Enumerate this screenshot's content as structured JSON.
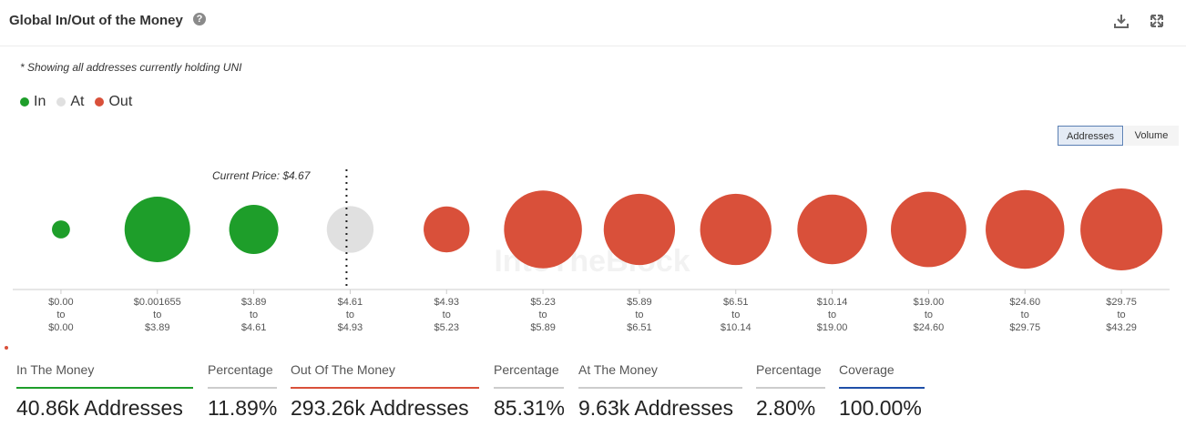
{
  "header": {
    "title": "Global In/Out of the Money",
    "help_glyph": "?"
  },
  "note": "* Showing all addresses currently holding UNI",
  "legend": [
    {
      "label": "In",
      "color": "#1e9e2a"
    },
    {
      "label": "At",
      "color": "#e0e0e0"
    },
    {
      "label": "Out",
      "color": "#d9503a"
    }
  ],
  "toggle": {
    "addresses": "Addresses",
    "volume": "Volume"
  },
  "watermark": "IntoTheBlock",
  "chart_data": {
    "type": "bubble",
    "title": "Global In/Out of the Money",
    "current_price_label": "Current Price: $4.67",
    "current_price": 4.67,
    "categories": [
      {
        "from": "$0.00",
        "to": "$0.00",
        "status": "in",
        "rel_size": 0.22
      },
      {
        "from": "$0.001655",
        "to": "$3.89",
        "status": "in",
        "rel_size": 0.8
      },
      {
        "from": "$3.89",
        "to": "$4.61",
        "status": "in",
        "rel_size": 0.6
      },
      {
        "from": "$4.61",
        "to": "$4.93",
        "status": "at",
        "rel_size": 0.57
      },
      {
        "from": "$4.93",
        "to": "$5.23",
        "status": "out",
        "rel_size": 0.56
      },
      {
        "from": "$5.23",
        "to": "$5.89",
        "status": "out",
        "rel_size": 0.95
      },
      {
        "from": "$5.89",
        "to": "$6.51",
        "status": "out",
        "rel_size": 0.87
      },
      {
        "from": "$6.51",
        "to": "$10.14",
        "status": "out",
        "rel_size": 0.87
      },
      {
        "from": "$10.14",
        "to": "$19.00",
        "status": "out",
        "rel_size": 0.85
      },
      {
        "from": "$19.00",
        "to": "$24.60",
        "status": "out",
        "rel_size": 0.92
      },
      {
        "from": "$24.60",
        "to": "$29.75",
        "status": "out",
        "rel_size": 0.96
      },
      {
        "from": "$29.75",
        "to": "$43.29",
        "status": "out",
        "rel_size": 1.0
      }
    ],
    "to_word": "to",
    "colors": {
      "in": "#1e9e2a",
      "at": "#e0e0e0",
      "out": "#d9503a"
    }
  },
  "stats": [
    {
      "label": "In The Money",
      "value": "40.86k Addresses",
      "color": "#1e9e2a"
    },
    {
      "label": "Percentage",
      "value": "11.89%",
      "color": "#cccccc"
    },
    {
      "label": "Out Of The Money",
      "value": "293.26k Addresses",
      "color": "#d9503a"
    },
    {
      "label": "Percentage",
      "value": "85.31%",
      "color": "#cccccc"
    },
    {
      "label": "At The Money",
      "value": "9.63k Addresses",
      "color": "#cccccc"
    },
    {
      "label": "Percentage",
      "value": "2.80%",
      "color": "#cccccc"
    },
    {
      "label": "Coverage",
      "value": "100.00%",
      "color": "#1f4fa8"
    }
  ]
}
